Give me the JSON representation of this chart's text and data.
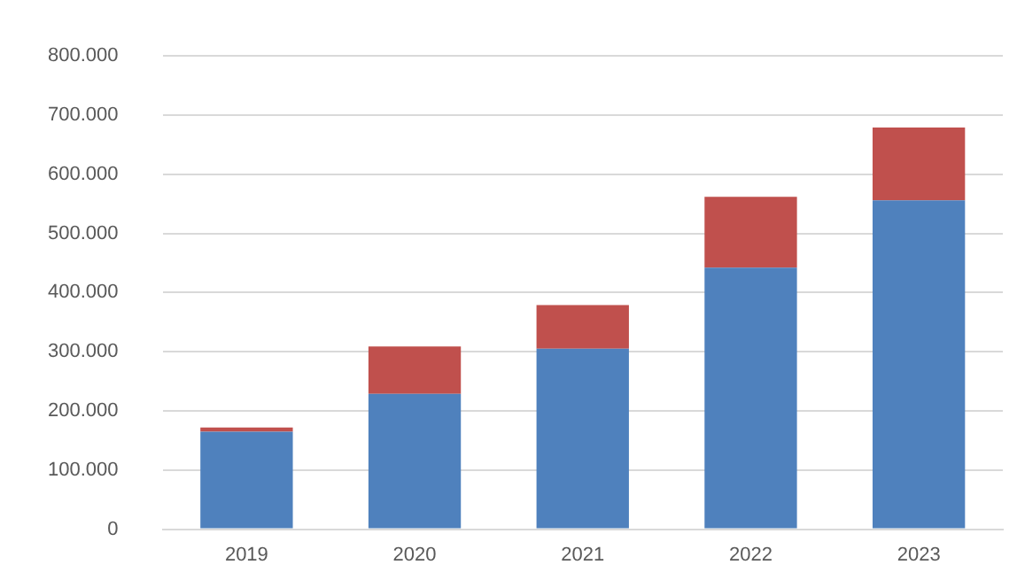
{
  "chart_data": {
    "type": "bar",
    "stacked": true,
    "categories": [
      "2019",
      "2020",
      "2021",
      "2022",
      "2023"
    ],
    "series": [
      {
        "color": "#4f81bd",
        "values": [
          165000,
          229000,
          305000,
          442000,
          556000
        ]
      },
      {
        "color": "#c0504d",
        "values": [
          7000,
          80000,
          74000,
          120000,
          123000
        ]
      }
    ],
    "ylim": [
      0,
      800000
    ],
    "yticks": [
      0,
      {
        "value": 100000,
        "label": "100.000"
      },
      {
        "value": 200000,
        "label": "200.000"
      },
      {
        "value": 300000,
        "label": "300.000"
      },
      {
        "value": 400000,
        "label": "400.000"
      },
      {
        "value": 500000,
        "label": "500.000"
      },
      {
        "value": 600000,
        "label": "600.000"
      },
      {
        "value": 700000,
        "label": "700.000"
      },
      {
        "value": 800000,
        "label": "800.000"
      }
    ],
    "grid": "y",
    "legend": false
  }
}
